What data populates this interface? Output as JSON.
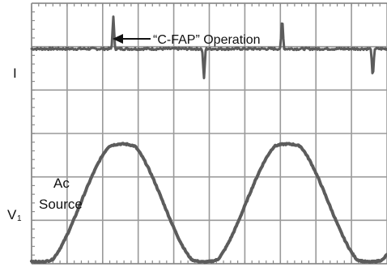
{
  "chart_data": {
    "type": "line",
    "title": "",
    "xlabel": "",
    "ylabel": "",
    "grid": true,
    "grid_divisions": {
      "x": 10,
      "y": 6
    },
    "series": [
      {
        "name": "I",
        "baseline_div": 4.95,
        "pulses": [
          {
            "x_div": 2.3,
            "amplitude_div": 0.75
          },
          {
            "x_div": 4.85,
            "amplitude_div": -0.7
          },
          {
            "x_div": 7.05,
            "amplitude_div": 0.75
          },
          {
            "x_div": 9.6,
            "amplitude_div": -0.7
          }
        ]
      },
      {
        "name": "V₁",
        "center_div": 1.4,
        "amplitude_div": 1.4,
        "period_div": 4.65,
        "phase_start_div": 0.22,
        "flat_top_fraction": 0.12
      }
    ],
    "annotations": [
      {
        "text": "“C-FAP” Operation",
        "points_to": "I pulse at x_div 2.3"
      }
    ],
    "labels": {
      "current": "I",
      "voltage_main": "V",
      "voltage_sub": "1",
      "source_line1": "Ac",
      "source_line2": "Source"
    }
  }
}
